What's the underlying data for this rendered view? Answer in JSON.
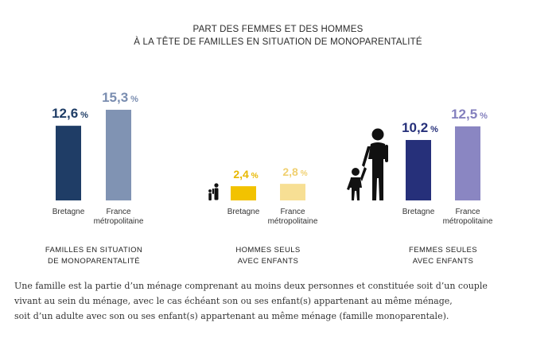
{
  "chart_data": {
    "type": "bar",
    "title": [
      "PART DES FEMMES ET DES HOMMES",
      "À LA TÊTE DE FAMILLES EN SITUATION DE MONOPARENTALITÉ"
    ],
    "unit": "%",
    "ylim": [
      0,
      16
    ],
    "groups": [
      {
        "name": "FAMILLES EN SITUATION DE MONOPARENTALITÉ",
        "name_lines": [
          "FAMILLES EN SITUATION",
          "DE MONOPARENTALITÉ"
        ],
        "icon": "none",
        "bars": [
          {
            "category": "Bretagne",
            "label_lines": [
              "Bretagne"
            ],
            "value": 12.6,
            "label": "12,6",
            "color": "#1f3d66",
            "label_color": "#1f3d66"
          },
          {
            "category": "France métropolitaine",
            "label_lines": [
              "France",
              "métropolitaine"
            ],
            "value": 15.3,
            "label": "15,3",
            "color": "#8093b3",
            "label_color": "#7a8db0"
          }
        ]
      },
      {
        "name": "HOMMES SEULS AVEC ENFANTS",
        "name_lines": [
          "HOMMES SEULS",
          "AVEC ENFANTS"
        ],
        "icon": "father-child-icon",
        "bars": [
          {
            "category": "Bretagne",
            "label_lines": [
              "Bretagne"
            ],
            "value": 2.4,
            "label": "2,4",
            "color": "#f2c200",
            "label_color": "#e8b800"
          },
          {
            "category": "France métropolitaine",
            "label_lines": [
              "France",
              "métropolitaine"
            ],
            "value": 2.8,
            "label": "2,8",
            "color": "#f7df94",
            "label_color": "#f0d070"
          }
        ]
      },
      {
        "name": "FEMMES SEULES AVEC ENFANTS",
        "name_lines": [
          "FEMMES SEULES",
          "AVEC ENFANTS"
        ],
        "icon": "mother-child-icon",
        "bars": [
          {
            "category": "Bretagne",
            "label_lines": [
              "Bretagne"
            ],
            "value": 10.2,
            "label": "10,2",
            "color": "#26307a",
            "label_color": "#26307a"
          },
          {
            "category": "France métropolitaine",
            "label_lines": [
              "France",
              "métropolitaine"
            ],
            "value": 12.5,
            "label": "12,5",
            "color": "#8a86c2",
            "label_color": "#8480be"
          }
        ]
      }
    ]
  },
  "footnote": [
    "Une famille est la partie d’un ménage comprenant au moins deux personnes et constituée soit d’un couple",
    "vivant au sein du ménage, avec le cas échéant son ou ses enfant(s) appartenant au même ménage,",
    "soit d’un adulte avec son ou ses enfant(s) appartenant au même ménage (famille monoparentale)."
  ]
}
